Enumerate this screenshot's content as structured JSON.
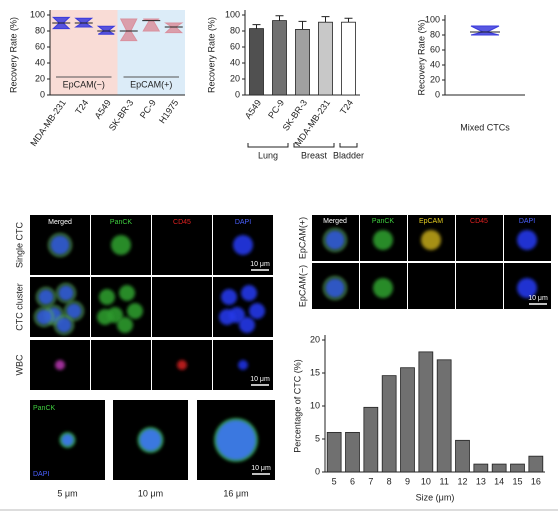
{
  "chart_data": [
    {
      "type": "violin",
      "ylabel": "Recovery Rate (%)",
      "categories": [
        "MDA-MB-231",
        "T24",
        "A549",
        "SK-BR-3",
        "PC-9",
        "H1975"
      ],
      "values": [
        90,
        90,
        80,
        80,
        93,
        85
      ],
      "mins": [
        83,
        85,
        76,
        68,
        80,
        78
      ],
      "maxs": [
        97,
        96,
        86,
        95,
        95,
        90
      ],
      "colors": [
        "#3b3bdc",
        "#3b3bdc",
        "#3b3bdc",
        "#d9909e",
        "#d9909e",
        "#d9909e"
      ],
      "groups": [
        {
          "name": "EpCAM(−)",
          "count": 3,
          "color": "#f9dcd6"
        },
        {
          "name": "EpCAM(+)",
          "count": 3,
          "color": "#dcecf8"
        }
      ],
      "ylim": [
        0,
        100
      ],
      "yticks": [
        0,
        20,
        40,
        60,
        80,
        100
      ]
    },
    {
      "type": "bar",
      "ylabel": "Recovery Rate (%)",
      "categories": [
        "A549",
        "PC-9",
        "SK-BR-3",
        "MDA-MB-231",
        "T24"
      ],
      "values": [
        83,
        93,
        82,
        91,
        91
      ],
      "errors": [
        5,
        6,
        10,
        7,
        5
      ],
      "colors": [
        "#505050",
        "#707070",
        "#a0a0a0",
        "#c8c8c8",
        "#ffffff"
      ],
      "groups": [
        {
          "name": "Lung",
          "count": 2
        },
        {
          "name": "Breast",
          "count": 2
        },
        {
          "name": "Bladder",
          "count": 1
        }
      ],
      "ylim": [
        0,
        100
      ],
      "yticks": [
        0,
        20,
        40,
        60,
        80,
        100
      ]
    },
    {
      "type": "violin",
      "ylabel": "Recovery Rate (%)",
      "categories": [
        "Mixed CTCs"
      ],
      "values": [
        84
      ],
      "mins": [
        80
      ],
      "maxs": [
        92
      ],
      "colors": [
        "#3b3bdc"
      ],
      "ylim": [
        0,
        100
      ],
      "yticks": [
        0,
        20,
        40,
        60,
        80,
        100
      ]
    },
    {
      "type": "bar",
      "ylabel": "Percentage of CTC (%)",
      "xlabel": "Size (μm)",
      "categories": [
        "5",
        "6",
        "7",
        "8",
        "9",
        "10",
        "11",
        "12",
        "13",
        "14",
        "15",
        "16"
      ],
      "values": [
        6,
        6,
        9.8,
        14.6,
        15.8,
        18.2,
        17,
        4.8,
        1.2,
        1.2,
        1.2,
        2.4
      ],
      "colors": [
        "#707070"
      ],
      "ylim": [
        0,
        20
      ],
      "yticks": [
        0,
        5,
        10,
        15,
        20
      ]
    }
  ],
  "micrographs": {
    "left": {
      "columns": [
        "Merged",
        "PanCK",
        "CD45",
        "DAPI"
      ],
      "rows": [
        "Single CTC",
        "CTC cluster",
        "WBC"
      ],
      "scale_bar": "10 μm"
    },
    "right": {
      "columns": [
        "Merged",
        "PanCK",
        "EpCAM",
        "CD45",
        "DAPI"
      ],
      "rows": [
        "EpCAM(+)",
        "EpCAM(−)"
      ],
      "scale_bar": "10 μm"
    },
    "sizes": {
      "channels": [
        "PanCK",
        "DAPI"
      ],
      "labels": [
        "5 μm",
        "10 μm",
        "16 μm"
      ],
      "scale_bar": "10 μm"
    }
  }
}
